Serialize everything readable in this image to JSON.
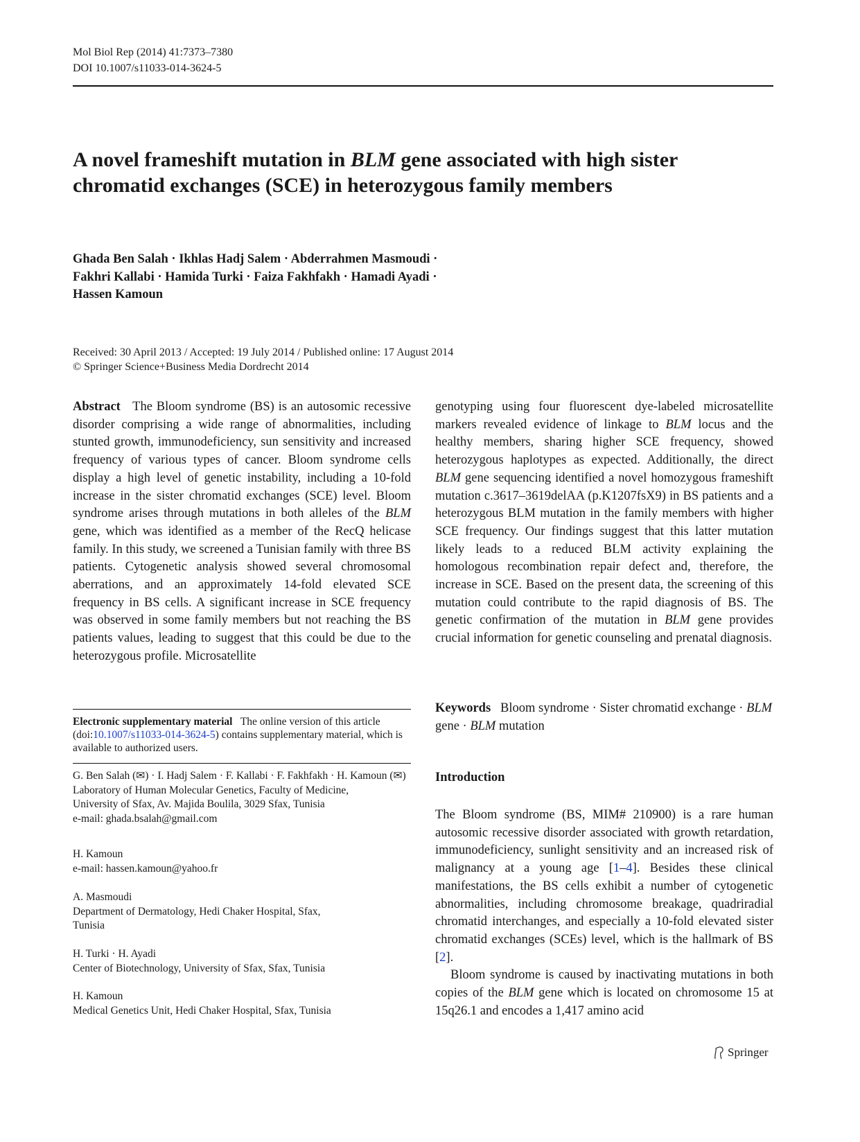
{
  "header": {
    "journal": "Mol Biol Rep (2014) 41:7373–7380",
    "doi": "DOI 10.1007/s11033-014-3624-5"
  },
  "title": {
    "part1": "A novel frameshift mutation in ",
    "gene": "BLM",
    "part2": " gene associated with high sister chromatid exchanges (SCE) in heterozygous family members"
  },
  "authors": {
    "line1": "Ghada Ben Salah · Ikhlas Hadj Salem · Abderrahmen Masmoudi ·",
    "line2": "Fakhri Kallabi · Hamida Turki · Faiza Fakhfakh · Hamadi Ayadi ·",
    "line3": "Hassen Kamoun"
  },
  "dates": {
    "line1": "Received: 30 April 2013 / Accepted: 19 July 2014 / Published online: 17 August 2014",
    "line2": "© Springer Science+Business Media Dordrecht 2014"
  },
  "abstract": {
    "heading": "Abstract",
    "left_a": "The Bloom syndrome (BS) is an autosomic recessive disorder comprising a wide range of abnormalities, including stunted growth, immunodeficiency, sun sensitivity and increased frequency of various types of cancer. Bloom syndrome cells display a high level of genetic instability, including a 10-fold increase in the sister chromatid exchanges (SCE) level. Bloom syndrome arises through mutations in both alleles of the ",
    "left_b": " gene, which was identified as a member of the RecQ helicase family. In this study, we screened a Tunisian family with three BS patients. Cytogenetic analysis showed several chromosomal aberrations, and an approximately 14-fold elevated SCE frequency in BS cells. A significant increase in SCE frequency was observed in some family members but not reaching the BS patients values, leading to suggest that this could be due to the heterozygous profile. Microsatellite",
    "right_a": "genotyping using four fluorescent dye-labeled microsatellite markers revealed evidence of linkage to ",
    "right_b": " locus and the healthy members, sharing higher SCE frequency, showed heterozygous haplotypes as expected. Additionally, the direct ",
    "right_c": " gene sequencing identified a novel homozygous frameshift mutation c.3617–3619delAA (p.K1207fsX9) in BS patients and a heterozygous BLM mutation in the family members with higher SCE frequency. Our findings suggest that this latter mutation likely leads to a reduced BLM activity explaining the homologous recombination repair defect and, therefore, the increase in SCE. Based on the present data, the screening of this mutation could contribute to the rapid diagnosis of BS. The genetic confirmation of the mutation in ",
    "right_d": " gene provides crucial information for genetic counseling and prenatal diagnosis.",
    "gene": "BLM"
  },
  "keywords": {
    "heading": "Keywords",
    "k1": "Bloom syndrome · Sister chromatid exchange · ",
    "g1": "BLM",
    "k2": " gene · ",
    "g2": "BLM",
    "k3": " mutation"
  },
  "esm": {
    "heading": "Electronic supplementary material",
    "t1": "The online version of this article (doi:",
    "link": "10.1007/s11033-014-3624-5",
    "t2": ") contains supplementary material, which is available to authorized users."
  },
  "affiliations": [
    {
      "names": "G. Ben Salah (✉) · I. Hadj Salem · F. Kallabi · F. Fakhfakh · H. Kamoun (✉)",
      "lines": [
        "Laboratory of Human Molecular Genetics, Faculty of Medicine,",
        "University of Sfax, Av. Majida Boulila, 3029 Sfax, Tunisia",
        "e-mail: ghada.bsalah@gmail.com"
      ]
    },
    {
      "names": "H. Kamoun",
      "lines": [
        "e-mail: hassen.kamoun@yahoo.fr"
      ]
    },
    {
      "names": "A. Masmoudi",
      "lines": [
        "Department of Dermatology, Hedi Chaker Hospital, Sfax,",
        "Tunisia"
      ]
    },
    {
      "names": "H. Turki · H. Ayadi",
      "lines": [
        "Center of Biotechnology, University of Sfax, Sfax, Tunisia"
      ]
    },
    {
      "names": "H. Kamoun",
      "lines": [
        "Medical Genetics Unit, Hedi Chaker Hospital, Sfax, Tunisia"
      ]
    }
  ],
  "introduction": {
    "heading": "Introduction",
    "p1a": "The Bloom syndrome (BS, MIM# 210900) is a rare human autosomic recessive disorder associated with growth retardation, immunodeficiency, sunlight sensitivity and an increased risk of malignancy at a young age [",
    "r1": "1",
    "dash": "–",
    "r2": "4",
    "p1b": "]. Besides these clinical manifestations, the BS cells exhibit a number of cytogenetic abnormalities, including chromosome breakage, quadriradial chromatid interchanges, and especially a 10-fold elevated sister chromatid exchanges (SCEs) level, which is the hallmark of BS [",
    "r3": "2",
    "p1c": "].",
    "p2a": "Bloom syndrome is caused by inactivating mutations in both copies of the ",
    "gene": "BLM",
    "p2b": " gene which is located on chromosome 15 at 15q26.1 and encodes a 1,417 amino acid"
  },
  "footer": {
    "publisher": "Springer",
    "link_color": "#1a3fcc"
  }
}
